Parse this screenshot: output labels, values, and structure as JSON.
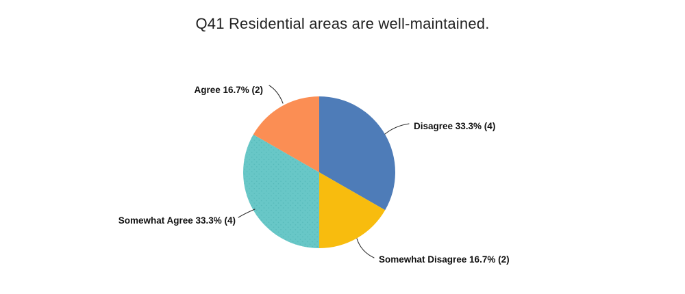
{
  "chart_data": {
    "type": "pie",
    "title": "Q41 Residential areas are well-maintained.",
    "direction": "clockwise",
    "start_angle_deg": 0,
    "legend_position": "none",
    "labels_outside": true,
    "total_responses": 12,
    "slices": [
      {
        "label": "Disagree",
        "percent": 33.3,
        "count": 4,
        "display": "Disagree 33.3% (4)",
        "color": "#4e7cb8",
        "texture": "solid"
      },
      {
        "label": "Somewhat Disagree",
        "percent": 16.7,
        "count": 2,
        "display": "Somewhat Disagree 16.7% (2)",
        "color": "#f8bc0e",
        "texture": "solid"
      },
      {
        "label": "Somewhat Agree",
        "percent": 33.3,
        "count": 4,
        "display": "Somewhat Agree 33.3% (4)",
        "color": "#68c7c7",
        "texture": "dots",
        "dot_color": "#53b8b8"
      },
      {
        "label": "Agree",
        "percent": 16.7,
        "count": 2,
        "display": "Agree 16.7% (2)",
        "color": "#fb8e54",
        "texture": "solid"
      }
    ]
  }
}
